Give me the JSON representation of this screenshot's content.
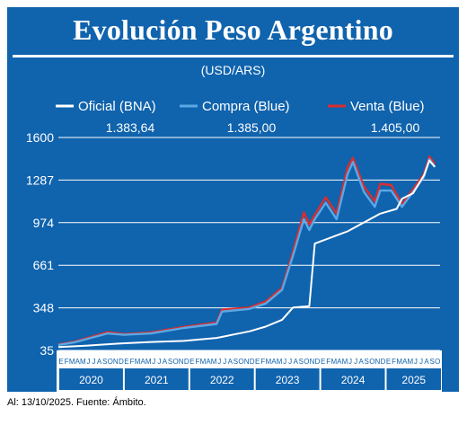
{
  "chart_data": {
    "type": "line",
    "title": "Evolución Peso Argentino",
    "subtitle": "(USD/ARS)",
    "xlabel": "",
    "ylabel": "",
    "ylim": [
      35,
      1600
    ],
    "yticks": [
      35,
      348,
      661,
      974,
      1287,
      1600
    ],
    "ytick_labels": [
      "35",
      "348",
      "661",
      "974",
      "1287",
      "1600"
    ],
    "grid": true,
    "legend_position": "top",
    "years": [
      "2020",
      "2021",
      "2022",
      "2023",
      "2024",
      "2025"
    ],
    "month_letters": [
      "E",
      "F",
      "M",
      "A",
      "M",
      "J",
      "J",
      "A",
      "S",
      "O",
      "N",
      "D"
    ],
    "month_letters_2025": [
      "E",
      "F",
      "M",
      "A",
      "M",
      "J",
      "J",
      "A",
      "S",
      "O"
    ],
    "colors": {
      "oficial": "#ffffff",
      "compra": "#5aa8e6",
      "venta": "#d92e2e"
    },
    "series": [
      {
        "name": "Oficial (BNA)",
        "value_label": "1.383,64",
        "x": [
          "2020-01",
          "2020-06",
          "2020-12",
          "2021-06",
          "2021-12",
          "2022-06",
          "2022-12",
          "2023-03",
          "2023-06",
          "2023-08",
          "2023-11",
          "2023-12",
          "2024-06",
          "2024-12",
          "2025-03",
          "2025-04",
          "2025-06",
          "2025-08",
          "2025-09",
          "2025-10"
        ],
        "y": [
          60,
          70,
          85,
          97,
          105,
          127,
          175,
          210,
          260,
          350,
          360,
          820,
          910,
          1040,
          1075,
          1150,
          1190,
          1320,
          1430,
          1383.64
        ]
      },
      {
        "name": "Compra (Blue)",
        "value_label": "1.385,00",
        "x": [
          "2020-01",
          "2020-04",
          "2020-10",
          "2021-01",
          "2021-06",
          "2021-12",
          "2022-06",
          "2022-07",
          "2022-12",
          "2023-03",
          "2023-06",
          "2023-08",
          "2023-10",
          "2023-11",
          "2023-12",
          "2024-02",
          "2024-04",
          "2024-06",
          "2024-07",
          "2024-09",
          "2024-11",
          "2024-12",
          "2025-02",
          "2025-04",
          "2025-06",
          "2025-08",
          "2025-09",
          "2025-10"
        ],
        "y": [
          75,
          95,
          160,
          150,
          160,
          200,
          230,
          320,
          340,
          380,
          480,
          730,
          1000,
          920,
          1000,
          1120,
          1000,
          1330,
          1420,
          1200,
          1090,
          1210,
          1210,
          1090,
          1200,
          1310,
          1440,
          1385
        ]
      },
      {
        "name": "Venta (Blue)",
        "value_label": "1.405,00",
        "x": [
          "2020-01",
          "2020-04",
          "2020-10",
          "2021-01",
          "2021-06",
          "2021-12",
          "2022-06",
          "2022-07",
          "2022-12",
          "2023-03",
          "2023-06",
          "2023-08",
          "2023-10",
          "2023-11",
          "2023-12",
          "2024-02",
          "2024-04",
          "2024-06",
          "2024-07",
          "2024-09",
          "2024-11",
          "2024-12",
          "2025-02",
          "2025-04",
          "2025-06",
          "2025-08",
          "2025-09",
          "2025-10"
        ],
        "y": [
          80,
          100,
          170,
          155,
          168,
          208,
          240,
          335,
          350,
          395,
          495,
          760,
          1050,
          960,
          1030,
          1160,
          1040,
          1380,
          1450,
          1240,
          1130,
          1260,
          1250,
          1110,
          1220,
          1330,
          1460,
          1405
        ]
      }
    ]
  },
  "footer": {
    "note": "Al: 13/10/2025. Fuente: Ámbito."
  }
}
